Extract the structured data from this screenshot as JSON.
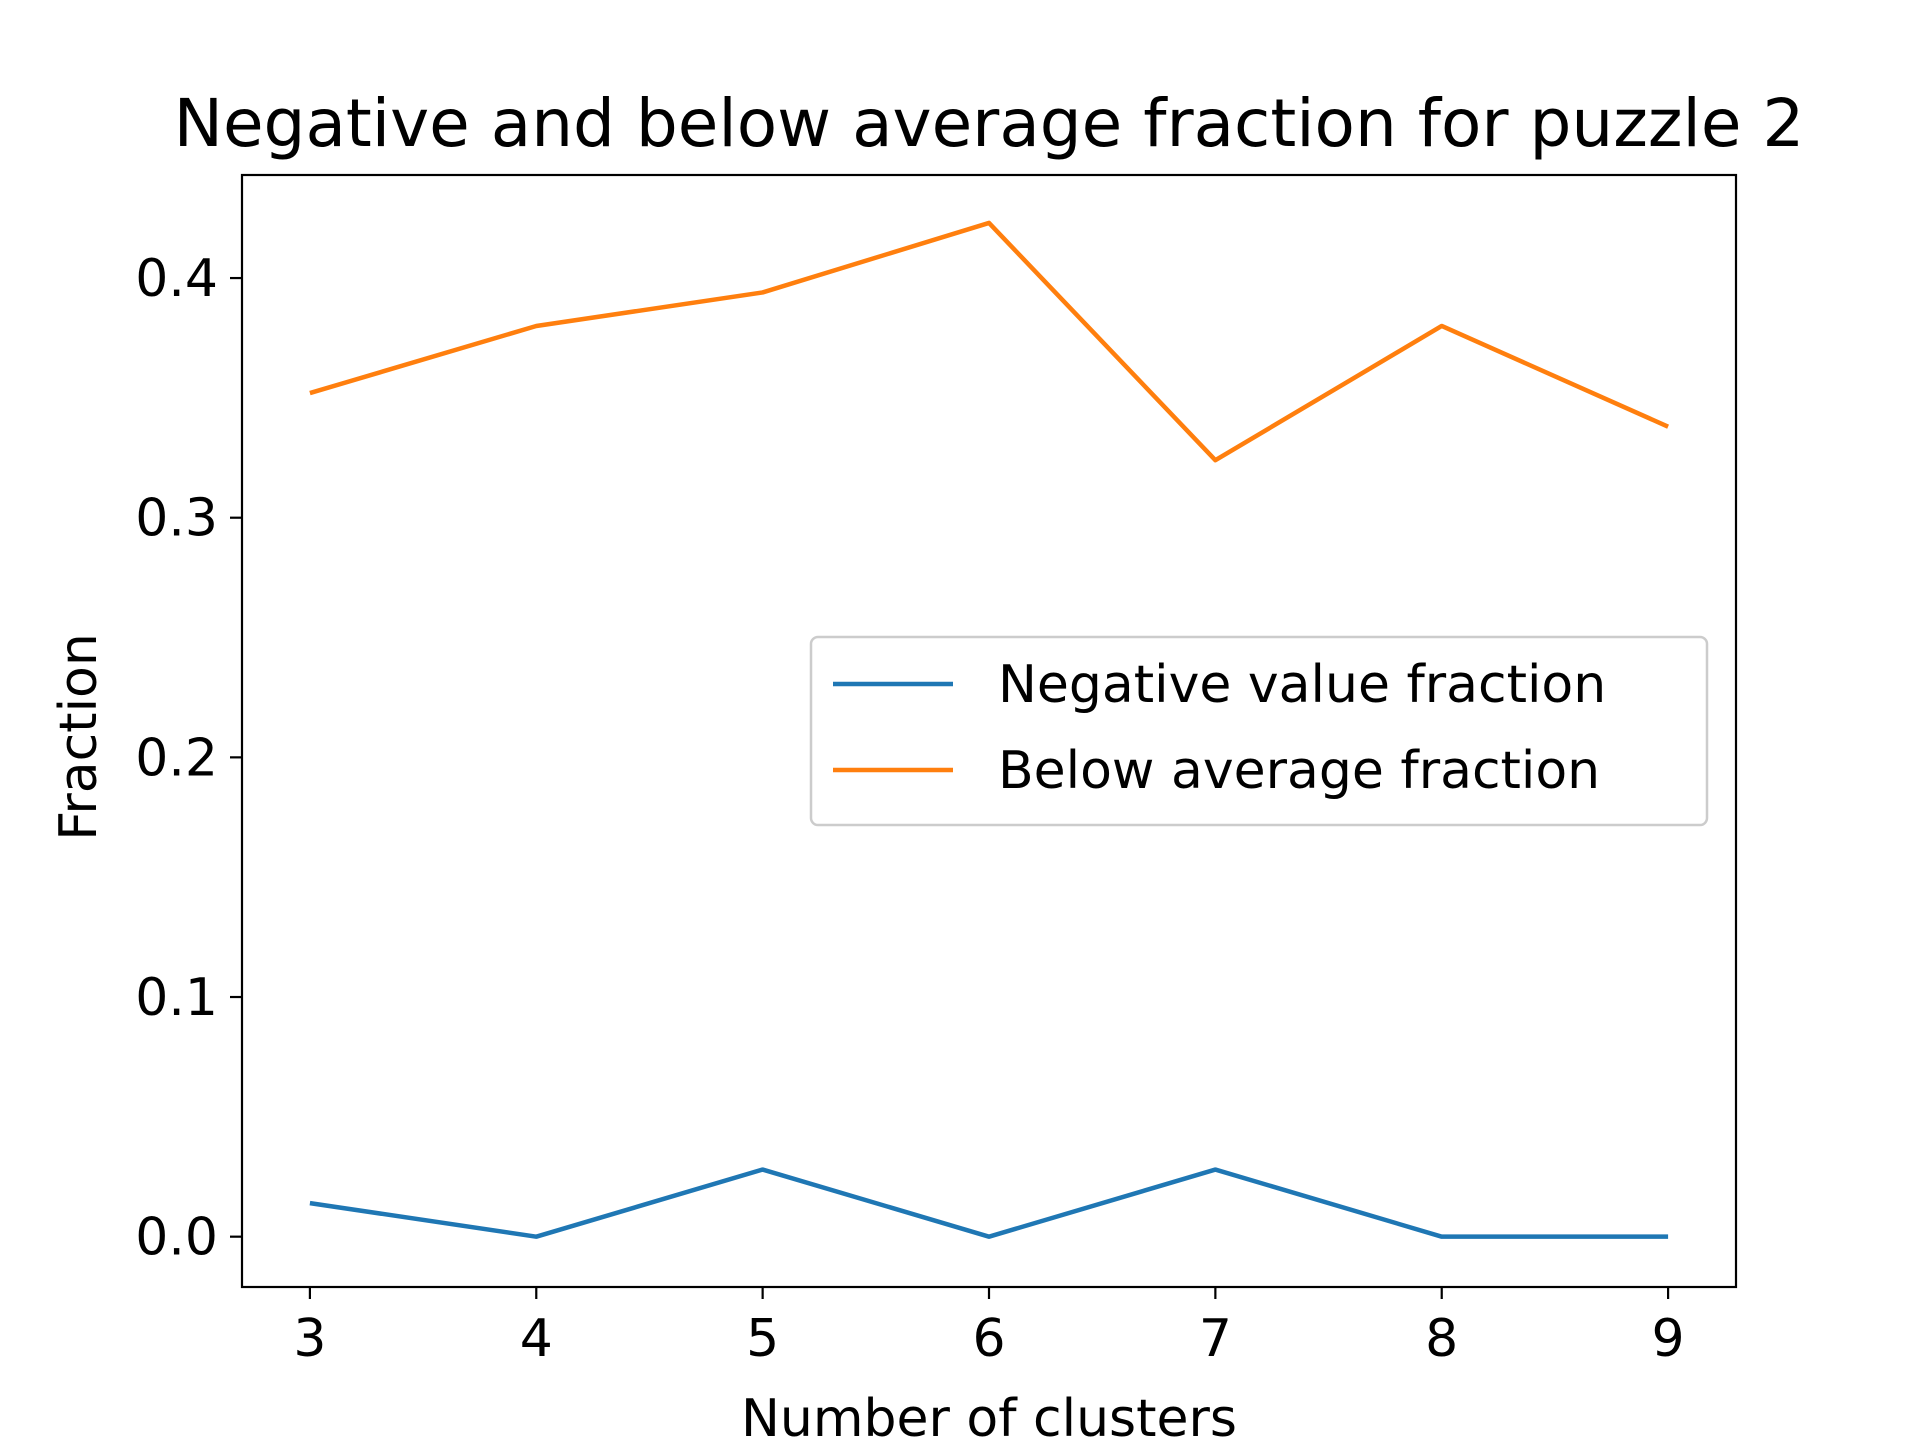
{
  "chart_data": {
    "type": "line",
    "title": "Negative and below average fraction for puzzle 2",
    "xlabel": "Number of clusters",
    "ylabel": "Fraction",
    "x": [
      3,
      4,
      5,
      6,
      7,
      8,
      9
    ],
    "xlim": [
      2.7,
      9.3
    ],
    "ylim": [
      -0.021,
      0.443
    ],
    "xticks": [
      "3",
      "4",
      "5",
      "6",
      "7",
      "8",
      "9"
    ],
    "yticks": [
      "0.0",
      "0.1",
      "0.2",
      "0.3",
      "0.4"
    ],
    "grid": false,
    "legend_position": "center-right",
    "series": [
      {
        "name": "Negative value fraction",
        "color": "#1f77b4",
        "values": [
          0.014,
          0.0,
          0.028,
          0.0,
          0.028,
          0.0,
          0.0
        ]
      },
      {
        "name": "Below average fraction",
        "color": "#ff7f0e",
        "values": [
          0.352,
          0.38,
          0.394,
          0.423,
          0.324,
          0.38,
          0.338
        ]
      }
    ]
  }
}
